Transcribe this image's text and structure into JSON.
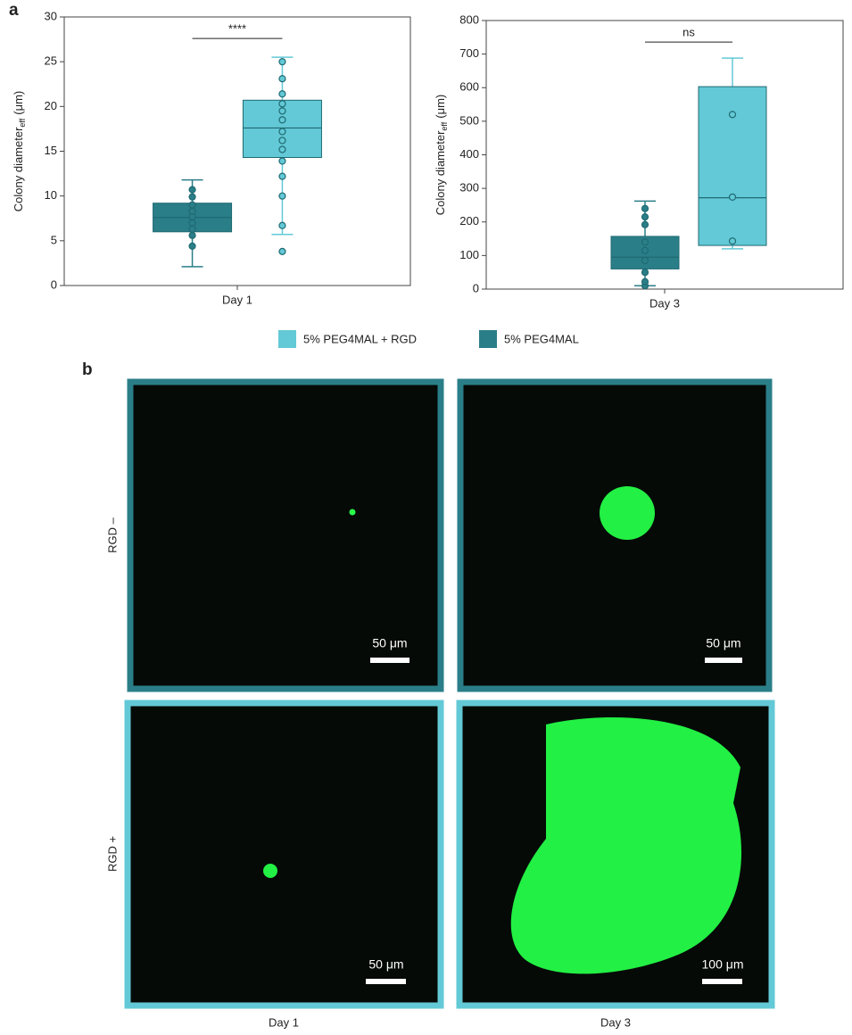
{
  "panel_labels": [
    "a",
    "b"
  ],
  "chart_data": [
    {
      "type": "box",
      "xlabel": "Day 1",
      "ylabel": "Colony diameter",
      "ylabel_sub": "eff",
      "ylabel_unit": "(μm)",
      "significance": "****",
      "ylim": [
        0,
        30
      ],
      "yticks": [
        0,
        5,
        10,
        15,
        20,
        25,
        30
      ],
      "series": [
        {
          "color": "#2a7e88",
          "whisker_low": 2.1,
          "q1": 6.0,
          "median": 7.6,
          "q3": 9.2,
          "whisker_high": 11.8,
          "points": [
            4.4,
            5.6,
            6.3,
            7.0,
            7.7,
            8.3,
            9.0,
            9.9,
            10.7
          ]
        },
        {
          "color": "#63c9d6",
          "whisker_low": 5.7,
          "q1": 14.3,
          "median": 17.6,
          "q3": 20.7,
          "whisker_high": 25.5,
          "points": [
            3.8,
            6.7,
            10.0,
            12.2,
            13.9,
            15.2,
            16.2,
            17.2,
            18.5,
            19.5,
            20.3,
            21.4,
            23.1,
            25.0
          ]
        }
      ]
    },
    {
      "type": "box",
      "xlabel": "Day 3",
      "ylabel": "Colony diameter",
      "ylabel_sub": "eff",
      "ylabel_unit": "(μm)",
      "significance": "ns",
      "ylim": [
        0,
        800
      ],
      "yticks": [
        0,
        100,
        200,
        300,
        400,
        500,
        600,
        700,
        800
      ],
      "series": [
        {
          "color": "#2a7e88",
          "whisker_low": 10,
          "q1": 60,
          "median": 95,
          "q3": 157,
          "whisker_high": 262,
          "points": [
            10,
            22,
            50,
            85,
            115,
            140,
            192,
            215,
            240
          ]
        },
        {
          "color": "#63c9d6",
          "whisker_low": 120,
          "q1": 130,
          "median": 272,
          "q3": 603,
          "whisker_high": 688,
          "points": [
            143,
            274,
            520
          ]
        }
      ]
    }
  ],
  "legend": [
    {
      "name": "5% PEG4MAL + RGD",
      "color": "#63c9d6"
    },
    {
      "name": "5% PEG4MAL",
      "color": "#2a7e88"
    }
  ],
  "images": {
    "rows": [
      "RGD –",
      "RGD +"
    ],
    "columns": [
      "Day 1",
      "Day 3"
    ],
    "scale_bars": [
      [
        "50 μm",
        "50 μm"
      ],
      [
        "50 μm",
        "100 μm"
      ]
    ]
  }
}
